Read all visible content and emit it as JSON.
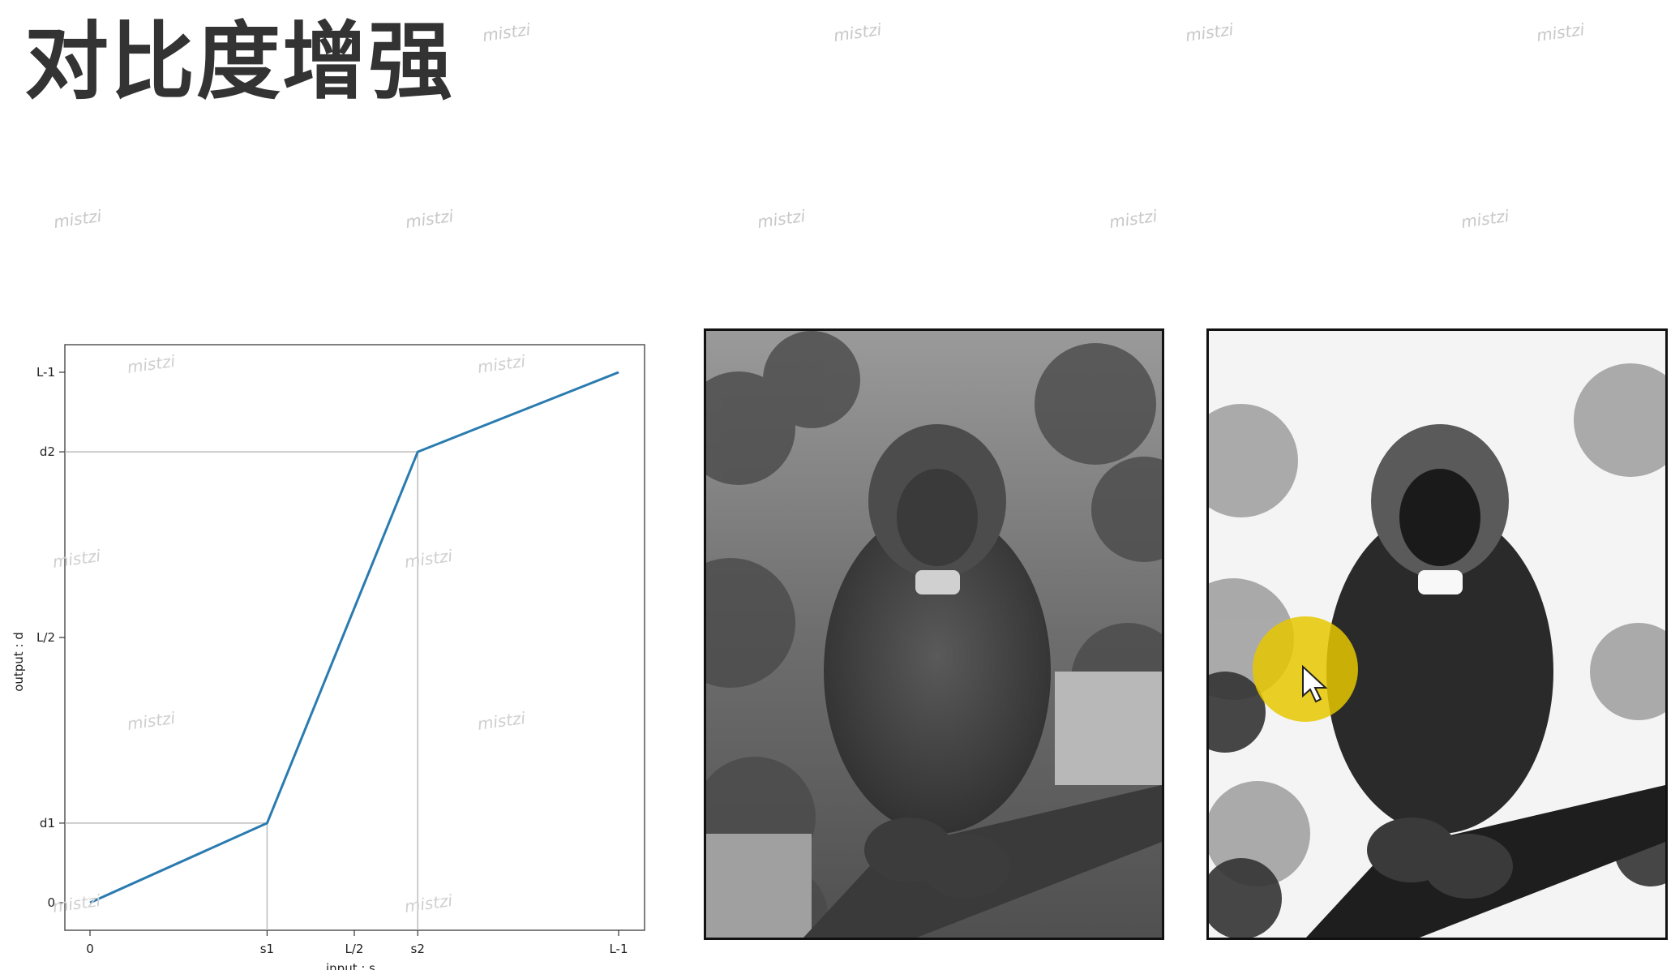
{
  "slide": {
    "title": "对比度增强",
    "watermark": "mistzi"
  },
  "chart_data": {
    "type": "line",
    "xlabel": "input : s",
    "ylabel": "output : d",
    "x_ticks": [
      "0",
      "s1",
      "L/2",
      "s2",
      "L-1"
    ],
    "y_ticks": [
      "0",
      "d1",
      "L/2",
      "d2",
      "L-1"
    ],
    "series": [
      {
        "x": [
          0,
          0.335,
          0.62,
          1.0
        ],
        "y": [
          0,
          0.15,
          0.85,
          1.0
        ],
        "color": "#2a7bb0"
      }
    ],
    "xlim": [
      0,
      1
    ],
    "ylim": [
      0,
      1
    ],
    "guide_lines": [
      "s1-d1",
      "s2-d2"
    ],
    "guide_color": "#bbbbbb"
  },
  "images": {
    "original": "grayscale-monkey-photo",
    "enhanced": "contrast-enhanced-monkey-photo"
  },
  "cursor": {
    "highlight_color": "#e6c800"
  }
}
